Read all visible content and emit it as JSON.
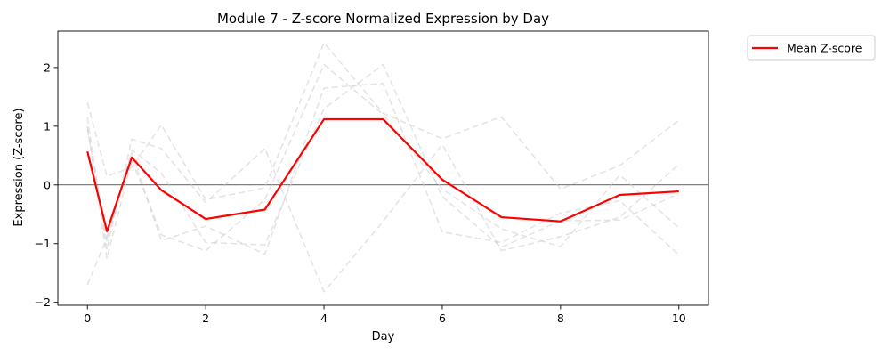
{
  "chart_data": {
    "type": "line",
    "title": "Module 7 - Z-score Normalized Expression by Day",
    "xlabel": "Day",
    "ylabel": "Expression (Z-score)",
    "xlim": [
      -0.5,
      10.5
    ],
    "ylim": [
      -2.05,
      2.62
    ],
    "xticks": [
      0,
      2,
      4,
      6,
      8,
      10
    ],
    "yticks": [
      -2,
      -1,
      0,
      1,
      2
    ],
    "x": [
      0,
      0.33,
      0.75,
      1.25,
      2,
      3,
      4,
      5,
      6,
      7,
      8,
      9,
      10
    ],
    "reference_line": 0,
    "grid": false,
    "legend_position": "outside-top-right",
    "series": [
      {
        "name": "Mean Z-score",
        "color": "#ff0000",
        "style": "solid",
        "values": [
          0.57,
          -0.79,
          0.47,
          -0.09,
          -0.58,
          -0.42,
          1.12,
          1.12,
          0.09,
          -0.55,
          -0.62,
          -0.17,
          -0.11
        ]
      },
      {
        "color": "#cccccc",
        "style": "dashed",
        "values": [
          1.4,
          0.15,
          0.3,
          1.02,
          -0.25,
          -0.05,
          2.42,
          1.22,
          0.79,
          1.16,
          -0.07,
          0.33,
          1.1
        ]
      },
      {
        "color": "#cccccc",
        "style": "dashed",
        "values": [
          1.15,
          -1.1,
          0.78,
          0.62,
          -0.3,
          0.62,
          -1.82,
          -0.62,
          0.69,
          -1.12,
          -0.88,
          -0.55,
          0.35
        ]
      },
      {
        "color": "#cccccc",
        "style": "dashed",
        "values": [
          -1.7,
          -0.9,
          0.55,
          -0.95,
          -0.7,
          -1.18,
          1.65,
          1.73,
          -0.8,
          -0.98,
          -0.48,
          -0.27,
          -1.19
        ]
      },
      {
        "color": "#cccccc",
        "style": "dashed",
        "values": [
          1.0,
          -1.25,
          0.42,
          -0.85,
          -1.12,
          -0.25,
          2.05,
          1.2,
          -0.07,
          -0.75,
          -1.05,
          0.17,
          -0.73
        ]
      },
      {
        "color": "#cccccc",
        "style": "dashed",
        "values": [
          0.95,
          -0.95,
          0.6,
          0.2,
          -0.98,
          -1.02,
          1.3,
          2.05,
          -0.2,
          -1.06,
          -0.61,
          -0.6,
          -0.15
        ]
      }
    ]
  }
}
